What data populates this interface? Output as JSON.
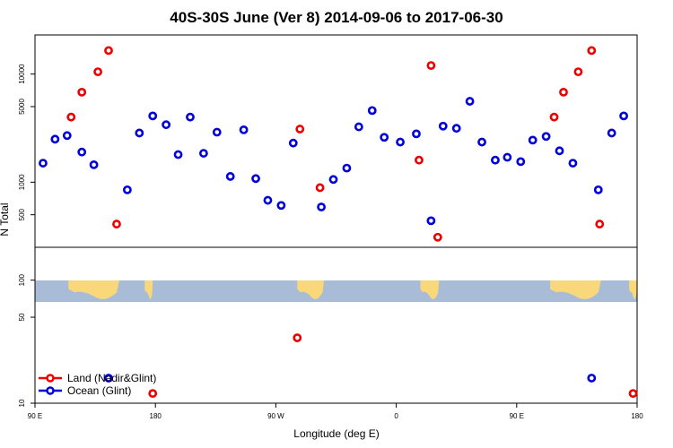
{
  "chart_data": {
    "type": "scatter",
    "title": "40S-30S June (Ver 8)   2014-09-06 to 2017-06-30",
    "xlabel": "Longitude (deg E)",
    "ylabel": "N Total",
    "x_ticks": [
      {
        "lon": 90,
        "label": "90 E"
      },
      {
        "lon": 180,
        "label": "180"
      },
      {
        "lon": 270,
        "label": "90 W"
      },
      {
        "lon": 360,
        "label": "0"
      },
      {
        "lon": 450,
        "label": "90 E"
      },
      {
        "lon": 540,
        "label": "180"
      }
    ],
    "xlim": [
      90,
      540
    ],
    "upper_panel": {
      "scale": "log",
      "ylim": [
        250,
        23000
      ],
      "y_ticks": [
        {
          "value": 500,
          "label": "500"
        },
        {
          "value": 1000,
          "label": "1000"
        },
        {
          "value": 5000,
          "label": "5000"
        },
        {
          "value": 10000,
          "label": "10000"
        }
      ]
    },
    "lower_panel": {
      "scale": "log",
      "ylim": [
        10,
        185
      ],
      "y_ticks": [
        {
          "value": 10,
          "label": "10"
        },
        {
          "value": 50,
          "label": "50"
        },
        {
          "value": 100,
          "label": "100"
        }
      ]
    },
    "series": [
      {
        "name": "Land (Nadir&Glint)",
        "color": "#ee0000",
        "points": [
          {
            "x": 117,
            "y": 4000
          },
          {
            "x": 125,
            "y": 6800
          },
          {
            "x": 137,
            "y": 10500
          },
          {
            "x": 145,
            "y": 16500
          },
          {
            "x": 151,
            "y": 410
          },
          {
            "x": 288,
            "y": 3100
          },
          {
            "x": 303,
            "y": 890
          },
          {
            "x": 377,
            "y": 1600
          },
          {
            "x": 386,
            "y": 12000
          },
          {
            "x": 391,
            "y": 310
          },
          {
            "x": 478,
            "y": 4000
          },
          {
            "x": 485,
            "y": 6800
          },
          {
            "x": 496,
            "y": 10500
          },
          {
            "x": 506,
            "y": 16500
          },
          {
            "x": 512,
            "y": 410
          },
          {
            "x": 178,
            "y": 12
          },
          {
            "x": 286,
            "y": 34
          },
          {
            "x": 537,
            "y": 12
          }
        ]
      },
      {
        "name": "Ocean (Glint)",
        "color": "#0000dd",
        "points": [
          {
            "x": 96,
            "y": 1500
          },
          {
            "x": 105,
            "y": 2500
          },
          {
            "x": 114,
            "y": 2700
          },
          {
            "x": 125,
            "y": 1900
          },
          {
            "x": 134,
            "y": 1450
          },
          {
            "x": 159,
            "y": 850
          },
          {
            "x": 168,
            "y": 2850
          },
          {
            "x": 178,
            "y": 4100
          },
          {
            "x": 188,
            "y": 3400
          },
          {
            "x": 197,
            "y": 1800
          },
          {
            "x": 206,
            "y": 4000
          },
          {
            "x": 216,
            "y": 1850
          },
          {
            "x": 226,
            "y": 2900
          },
          {
            "x": 236,
            "y": 1130
          },
          {
            "x": 246,
            "y": 3050
          },
          {
            "x": 255,
            "y": 1080
          },
          {
            "x": 264,
            "y": 680
          },
          {
            "x": 274,
            "y": 610
          },
          {
            "x": 283,
            "y": 2300
          },
          {
            "x": 304,
            "y": 590
          },
          {
            "x": 313,
            "y": 1060
          },
          {
            "x": 323,
            "y": 1350
          },
          {
            "x": 332,
            "y": 3250
          },
          {
            "x": 342,
            "y": 4600
          },
          {
            "x": 351,
            "y": 2600
          },
          {
            "x": 363,
            "y": 2350
          },
          {
            "x": 375,
            "y": 2800
          },
          {
            "x": 386,
            "y": 440
          },
          {
            "x": 395,
            "y": 3300
          },
          {
            "x": 405,
            "y": 3150
          },
          {
            "x": 415,
            "y": 5600
          },
          {
            "x": 424,
            "y": 2350
          },
          {
            "x": 434,
            "y": 1600
          },
          {
            "x": 443,
            "y": 1700
          },
          {
            "x": 453,
            "y": 1550
          },
          {
            "x": 462,
            "y": 2450
          },
          {
            "x": 472,
            "y": 2650
          },
          {
            "x": 482,
            "y": 1950
          },
          {
            "x": 492,
            "y": 1500
          },
          {
            "x": 511,
            "y": 850
          },
          {
            "x": 521,
            "y": 2850
          },
          {
            "x": 530,
            "y": 4100
          },
          {
            "x": 145,
            "y": 16
          },
          {
            "x": 506,
            "y": 16
          }
        ]
      }
    ],
    "legend": {
      "placement": "bottom-left",
      "entries": [
        {
          "label": "Land (Nadir&Glint)",
          "color": "#ee0000"
        },
        {
          "label": "Ocean (Glint)",
          "color": "#0000dd"
        }
      ]
    },
    "map_strip": {
      "ocean_color": "#a8bcd8",
      "land_color": "#f8d878",
      "land_patches": [
        {
          "name": "australia-a",
          "lon_start": 115,
          "lon_end": 153
        },
        {
          "name": "new-zealand-a",
          "lon_start": 172,
          "lon_end": 178
        },
        {
          "name": "south-america",
          "lon_start": 286,
          "lon_end": 306
        },
        {
          "name": "south-africa",
          "lon_start": 378,
          "lon_end": 392
        },
        {
          "name": "australia-b",
          "lon_start": 475,
          "lon_end": 513
        },
        {
          "name": "new-zealand-b",
          "lon_start": 534,
          "lon_end": 540
        }
      ]
    }
  }
}
